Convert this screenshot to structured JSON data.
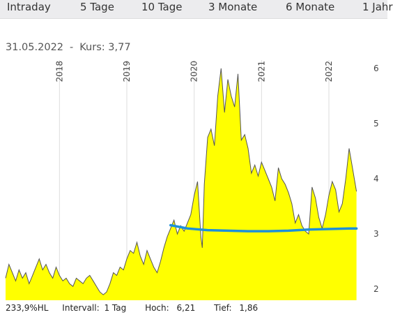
{
  "tabs": [
    {
      "label": "Intraday"
    },
    {
      "label": "5 Tage"
    },
    {
      "label": "10 Tage"
    },
    {
      "label": "3 Monate"
    },
    {
      "label": "6 Monate"
    },
    {
      "label": "1 Jahr"
    }
  ],
  "header": {
    "date": "31.05.2022",
    "separator": "-",
    "price_label": "Kurs:",
    "price_value": "3,77"
  },
  "footer": {
    "performance": "233,9%HL",
    "interval_label": "Intervall:",
    "interval_value": "1 Tag",
    "high_label": "Hoch:",
    "high_value": "6,21",
    "low_label": "Tief:",
    "low_value": "1,86"
  },
  "colors": {
    "area_fill": "#ffff00",
    "price_line": "#555555",
    "moving_average": "#1e90d8",
    "grid": "#dddddd"
  },
  "chart_data": {
    "type": "area",
    "x_unit": "year",
    "xlim": [
      2017.2,
      2022.6
    ],
    "ylim": [
      1.8,
      6.15
    ],
    "year_ticks": [
      "2018",
      "2019",
      "2020",
      "2021",
      "2022"
    ],
    "y_ticks": [
      "2",
      "3",
      "4",
      "5",
      "6"
    ],
    "price_series": {
      "x": [
        2017.2,
        2017.25,
        2017.3,
        2017.35,
        2017.4,
        2017.45,
        2017.5,
        2017.55,
        2017.6,
        2017.65,
        2017.7,
        2017.75,
        2017.8,
        2017.85,
        2017.9,
        2017.95,
        2018.0,
        2018.05,
        2018.1,
        2018.15,
        2018.2,
        2018.25,
        2018.3,
        2018.35,
        2018.4,
        2018.45,
        2018.5,
        2018.55,
        2018.6,
        2018.65,
        2018.7,
        2018.75,
        2018.8,
        2018.85,
        2018.9,
        2018.95,
        2019.0,
        2019.05,
        2019.1,
        2019.15,
        2019.2,
        2019.25,
        2019.3,
        2019.35,
        2019.4,
        2019.45,
        2019.5,
        2019.55,
        2019.6,
        2019.65,
        2019.7,
        2019.75,
        2019.8,
        2019.85,
        2019.9,
        2019.95,
        2020.0,
        2020.05,
        2020.1,
        2020.12,
        2020.15,
        2020.2,
        2020.25,
        2020.3,
        2020.35,
        2020.4,
        2020.45,
        2020.5,
        2020.55,
        2020.6,
        2020.65,
        2020.7,
        2020.75,
        2020.8,
        2020.85,
        2020.9,
        2020.95,
        2021.0,
        2021.05,
        2021.1,
        2021.15,
        2021.2,
        2021.25,
        2021.3,
        2021.35,
        2021.4,
        2021.45,
        2021.5,
        2021.55,
        2021.6,
        2021.65,
        2021.7,
        2021.75,
        2021.8,
        2021.85,
        2021.9,
        2021.95,
        2022.0,
        2022.05,
        2022.1,
        2022.15,
        2022.2,
        2022.25,
        2022.3,
        2022.35,
        2022.41
      ],
      "y": [
        2.2,
        2.45,
        2.3,
        2.15,
        2.35,
        2.2,
        2.3,
        2.1,
        2.25,
        2.4,
        2.55,
        2.35,
        2.45,
        2.3,
        2.2,
        2.4,
        2.25,
        2.15,
        2.2,
        2.1,
        2.05,
        2.2,
        2.15,
        2.1,
        2.2,
        2.25,
        2.15,
        2.05,
        1.95,
        1.9,
        1.95,
        2.1,
        2.3,
        2.25,
        2.4,
        2.35,
        2.55,
        2.7,
        2.65,
        2.85,
        2.6,
        2.45,
        2.7,
        2.55,
        2.4,
        2.3,
        2.5,
        2.75,
        2.95,
        3.1,
        3.25,
        3.0,
        3.15,
        3.05,
        3.2,
        3.35,
        3.7,
        3.95,
        2.95,
        2.75,
        3.9,
        4.75,
        4.9,
        4.6,
        5.5,
        6.0,
        5.2,
        5.8,
        5.5,
        5.3,
        5.9,
        4.7,
        4.8,
        4.55,
        4.1,
        4.25,
        4.05,
        4.3,
        4.15,
        4.0,
        3.85,
        3.6,
        4.2,
        4.0,
        3.9,
        3.75,
        3.55,
        3.2,
        3.35,
        3.15,
        3.05,
        3.0,
        3.85,
        3.65,
        3.3,
        3.1,
        3.35,
        3.7,
        3.95,
        3.8,
        3.4,
        3.55,
        4.0,
        4.55,
        4.2,
        3.77
      ]
    },
    "moving_average": {
      "x": [
        2019.65,
        2019.9,
        2020.2,
        2020.5,
        2020.8,
        2021.1,
        2021.4,
        2021.7,
        2022.0,
        2022.3,
        2022.41
      ],
      "y": [
        3.16,
        3.1,
        3.07,
        3.06,
        3.05,
        3.05,
        3.06,
        3.08,
        3.09,
        3.1,
        3.1
      ]
    },
    "high": 6.21,
    "low": 1.86
  }
}
